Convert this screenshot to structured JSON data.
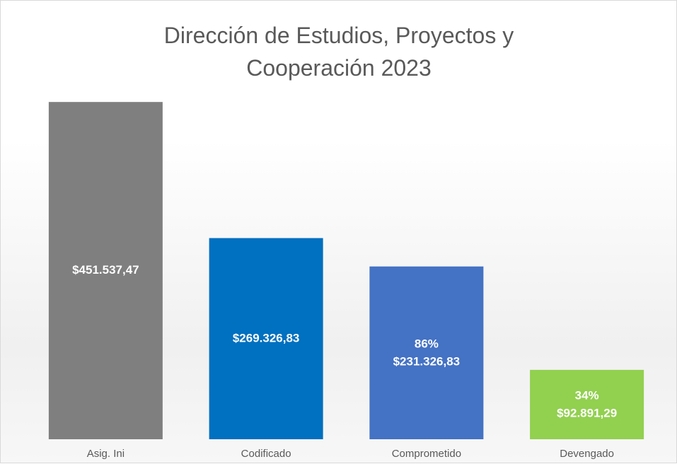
{
  "chart_data": {
    "type": "bar",
    "title": "Dirección de Estudios, Proyectos y Cooperación 2023",
    "categories": [
      "Asig. Ini",
      "Codificado",
      "Comprometido",
      "Devengado"
    ],
    "values": [
      451537.47,
      269326.83,
      231326.83,
      92891.29
    ],
    "value_labels": [
      "$451.537,47",
      "$269.326,83",
      "$231.326,83",
      "$92.891,29"
    ],
    "share_labels": [
      null,
      null,
      "86%",
      "34%"
    ],
    "colors": [
      "#7f7f7f",
      "#0070c0",
      "#4472c4",
      "#92d050"
    ],
    "ylim": [
      0,
      500000
    ]
  }
}
